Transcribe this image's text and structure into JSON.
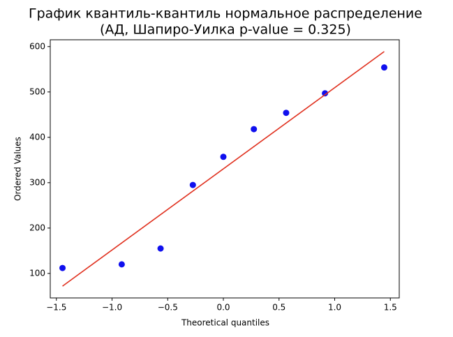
{
  "chart_data": {
    "type": "scatter",
    "title": [
      "График квантиль-квантиль нормальное распределение",
      "(АД, Шапиро-Уилка p-value = 0.325)"
    ],
    "xlabel": "Theoretical quantiles",
    "ylabel": "Ordered Values",
    "x": [
      -1.445,
      -0.913,
      -0.564,
      -0.274,
      0,
      0.274,
      0.564,
      0.913,
      1.445
    ],
    "values": [
      112,
      120,
      155,
      295,
      357,
      418,
      454,
      497,
      554
    ],
    "color": "#1010ee",
    "fit_line": {
      "x": [
        -1.445,
        1.445
      ],
      "values": [
        72,
        589
      ],
      "color": "#e0301e"
    },
    "xlim": [
      -1.555,
      1.58
    ],
    "ylim": [
      46,
      615
    ],
    "xticks": [
      {
        "value": -1.5,
        "label": "−1.5"
      },
      {
        "value": -1,
        "label": "−1.0"
      },
      {
        "value": -0.5,
        "label": "−0.5"
      },
      {
        "value": 0,
        "label": "0.0"
      },
      0.5,
      {
        "value": 1,
        "label": "1.0"
      },
      1.5
    ],
    "yticks": [
      100,
      200,
      300,
      400,
      500,
      600
    ],
    "grid": false
  }
}
